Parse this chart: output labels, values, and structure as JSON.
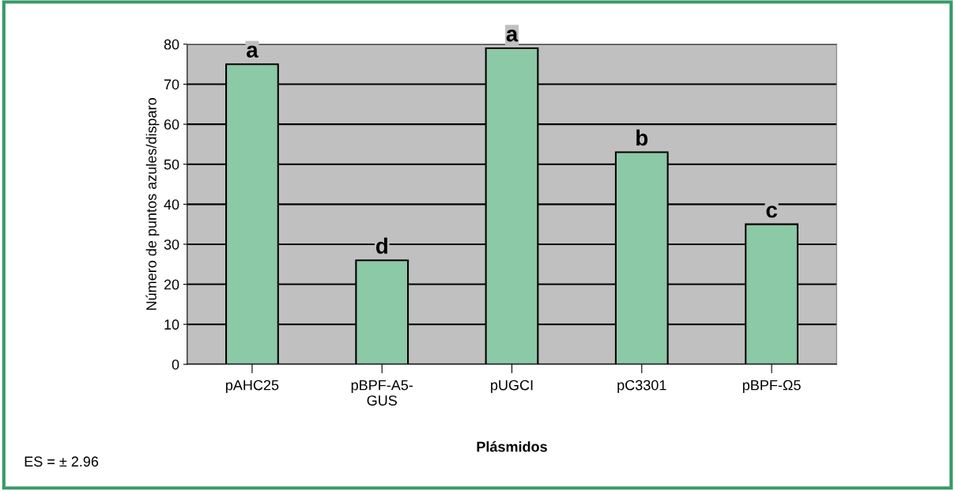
{
  "chart_data": {
    "type": "bar",
    "categories": [
      "pAHC25",
      "pBPF-A5-\nGUS",
      "pUGCI",
      "pC3301",
      "pBPF-Ω5"
    ],
    "values": [
      75,
      26,
      79,
      53,
      35
    ],
    "value_labels": [
      "a",
      "d",
      "a",
      "b",
      "c"
    ],
    "color": "#8cc9a6",
    "xlabel": "Plásmidos",
    "ylabel": "Número de puntos azules/disparo",
    "ylim": [
      0,
      80
    ],
    "yticks": [
      0,
      10,
      20,
      30,
      40,
      50,
      60,
      70,
      80
    ],
    "grid": "y",
    "annotations": [
      "ES = ± 2.96"
    ]
  }
}
